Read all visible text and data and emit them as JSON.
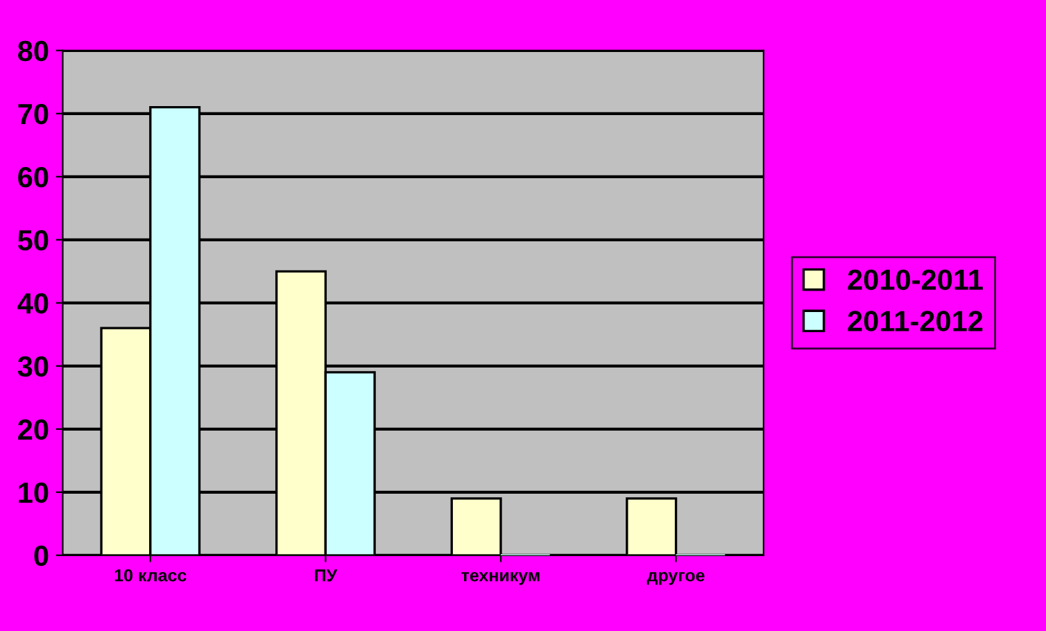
{
  "chart_data": {
    "type": "bar",
    "categories": [
      "10 класс",
      "ПУ",
      "техникум",
      "другое"
    ],
    "series": [
      {
        "name": "2010-2011",
        "color": "#ffffcc",
        "values": [
          36,
          45,
          9,
          9
        ]
      },
      {
        "name": "2011-2012",
        "color": "#ccffff",
        "values": [
          71,
          29,
          0,
          0
        ]
      }
    ],
    "ylim": [
      0,
      80
    ],
    "yticks": [
      0,
      10,
      20,
      30,
      40,
      50,
      60,
      70,
      80
    ],
    "grid": "y",
    "legend": "right"
  }
}
